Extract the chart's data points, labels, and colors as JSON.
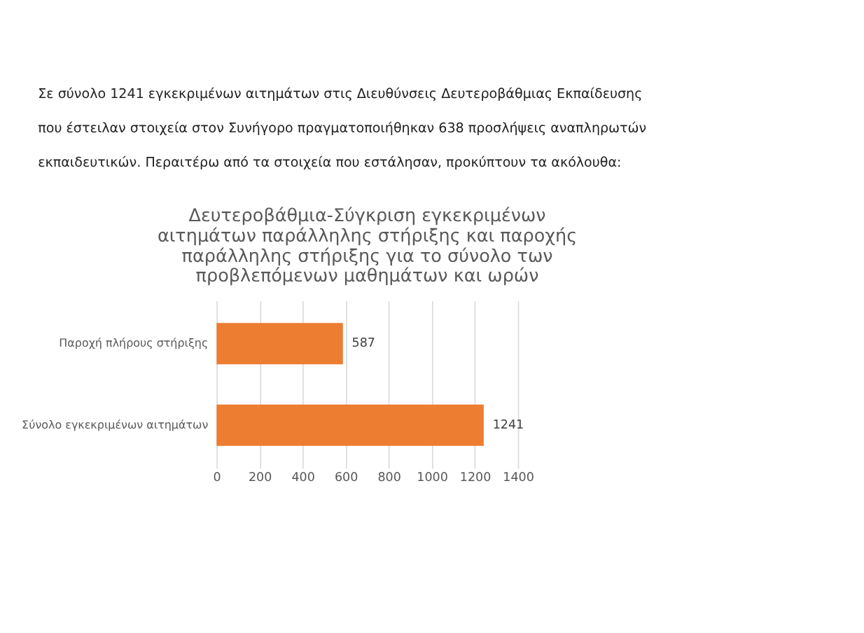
{
  "chart_data": {
    "type": "bar",
    "orientation": "horizontal",
    "title": "Δευτεροβάθμια-Σύγκριση εγκεκριμένων αιτημάτων παράλληλης στήριξης και παροχής παράλληλης στήριξης για το σύνολο των προβλεπόμενων μαθημάτων και ωρών",
    "annotations": [
      "Σε σύνολο 1241 εγκεκριμένων αιτημάτων στις Διευθύνσεις Δευτεροβάθμιας Εκπαίδευσης που έστειλαν στοιχεία στον Συνήγορο πραγματοποιήθηκαν 638 προσλήψεις αναπληρωτών εκπαιδευτικών. Περαιτέρω από τα στοιχεία που εστάλησαν, προκύπτουν τα ακόλουθα:"
    ],
    "categories": [
      "Παροχή πλήρους στήριξης",
      "Σύνολο εγκεκριμένων αιτημάτων"
    ],
    "values": [
      587,
      1241
    ],
    "color": "#ed7d31",
    "xlim": [
      0,
      1400
    ],
    "xticks": [
      0,
      200,
      400,
      600,
      800,
      1000,
      1200,
      1400
    ],
    "grid": "x",
    "data_labels": true
  }
}
